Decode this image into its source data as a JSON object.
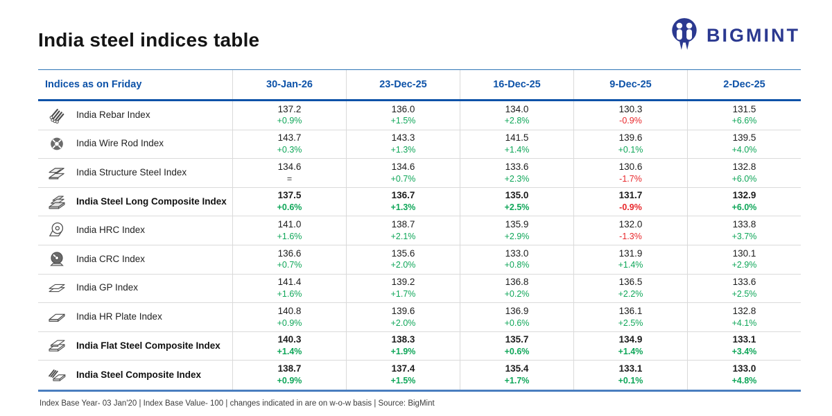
{
  "page": {
    "title": "India steel indices table"
  },
  "logo": {
    "brand": "BIGMINT",
    "brand_color": "#2b3990"
  },
  "colors": {
    "header_blue": "#0d52a8",
    "positive_green": "#0ea658",
    "negative_red": "#e8262a",
    "table_bottom_blue": "#4a7ebf",
    "row_divider_gray": "#dadada"
  },
  "footer": {
    "note": "Index Base Year- 03 Jan'20 | Index Base Value- 100 | changes indicated in are on w-o-w basis | Source: BigMint"
  },
  "chart_data": {
    "type": "table",
    "title": "India steel indices table",
    "header_label": "Indices as on Friday",
    "columns": [
      "30-Jan-26",
      "23-Dec-25",
      "16-Dec-25",
      "9-Dec-25",
      "2-Dec-25"
    ],
    "rows": [
      {
        "name": "India Rebar Index",
        "icon": "rebar-icon",
        "bold": false,
        "values": [
          "137.2",
          "136.0",
          "134.0",
          "130.3",
          "131.5"
        ],
        "changes": [
          "+0.9%",
          "+1.5%",
          "+2.8%",
          "-0.9%",
          "+6.6%"
        ]
      },
      {
        "name": "India Wire Rod Index",
        "icon": "wire-rod-coil-icon",
        "bold": false,
        "values": [
          "143.7",
          "143.3",
          "141.5",
          "139.6",
          "139.5"
        ],
        "changes": [
          "+0.3%",
          "+1.3%",
          "+1.4%",
          "+0.1%",
          "+4.0%"
        ]
      },
      {
        "name": "India Structure Steel Index",
        "icon": "structure-steel-icon",
        "bold": false,
        "values": [
          "134.6",
          "134.6",
          "133.6",
          "130.6",
          "132.8"
        ],
        "changes": [
          "=",
          "+0.7%",
          "+2.3%",
          "-1.7%",
          "+6.0%"
        ]
      },
      {
        "name": "India Steel Long Composite Index",
        "icon": "long-steel-stack-icon",
        "bold": true,
        "values": [
          "137.5",
          "136.7",
          "135.0",
          "131.7",
          "132.9"
        ],
        "changes": [
          "+0.6%",
          "+1.3%",
          "+2.5%",
          "-0.9%",
          "+6.0%"
        ]
      },
      {
        "name": "India HRC Index",
        "icon": "hrc-coil-icon",
        "bold": false,
        "values": [
          "141.0",
          "138.7",
          "135.9",
          "132.0",
          "133.8"
        ],
        "changes": [
          "+1.6%",
          "+2.1%",
          "+2.9%",
          "-1.3%",
          "+3.7%"
        ]
      },
      {
        "name": "India CRC Index",
        "icon": "crc-coil-icon",
        "bold": false,
        "values": [
          "136.6",
          "135.6",
          "133.0",
          "131.9",
          "130.1"
        ],
        "changes": [
          "+0.7%",
          "+2.0%",
          "+0.8%",
          "+1.4%",
          "+2.9%"
        ]
      },
      {
        "name": "India GP Index",
        "icon": "gp-sheets-icon",
        "bold": false,
        "values": [
          "141.4",
          "139.2",
          "136.8",
          "136.5",
          "133.6"
        ],
        "changes": [
          "+1.6%",
          "+1.7%",
          "+0.2%",
          "+2.2%",
          "+2.5%"
        ]
      },
      {
        "name": "India HR Plate Index",
        "icon": "hr-plate-icon",
        "bold": false,
        "values": [
          "140.8",
          "139.6",
          "136.9",
          "136.1",
          "132.8"
        ],
        "changes": [
          "+0.9%",
          "+2.0%",
          "+0.6%",
          "+2.5%",
          "+4.1%"
        ]
      },
      {
        "name": "India Flat Steel Composite Index",
        "icon": "flat-steel-stack-icon",
        "bold": true,
        "values": [
          "140.3",
          "138.3",
          "135.7",
          "134.9",
          "133.1"
        ],
        "changes": [
          "+1.4%",
          "+1.9%",
          "+0.6%",
          "+1.4%",
          "+3.4%"
        ]
      },
      {
        "name": "India Steel Composite Index",
        "icon": "steel-composite-icon",
        "bold": true,
        "values": [
          "138.7",
          "137.4",
          "135.4",
          "133.1",
          "133.0"
        ],
        "changes": [
          "+0.9%",
          "+1.5%",
          "+1.7%",
          "+0.1%",
          "+4.8%"
        ]
      }
    ]
  }
}
